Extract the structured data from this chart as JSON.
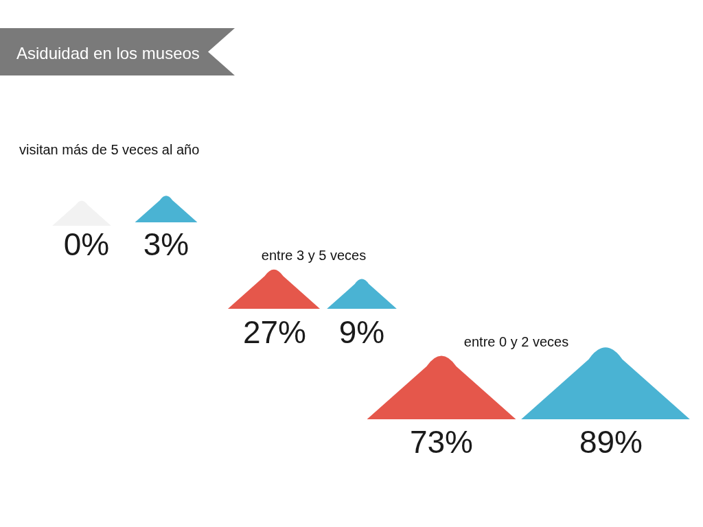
{
  "chart_data": {
    "type": "other",
    "title": "Asiduidad en los museos",
    "categories": [
      "visitan más de 5 veces al año",
      "entre 3 y 5 veces",
      "entre 0 y 2 veces"
    ],
    "series": [
      {
        "colors": [
          "#f2f2f2",
          "#e5574b",
          "#e5574b"
        ],
        "values": [
          0,
          27,
          73
        ],
        "value_labels": [
          "0%",
          "27%",
          "73%"
        ]
      },
      {
        "colors": [
          "#4ab3d3",
          "#4ab3d3",
          "#4ab3d3"
        ],
        "values": [
          3,
          9,
          89
        ],
        "value_labels": [
          "3%",
          "9%",
          "89%"
        ]
      }
    ]
  }
}
